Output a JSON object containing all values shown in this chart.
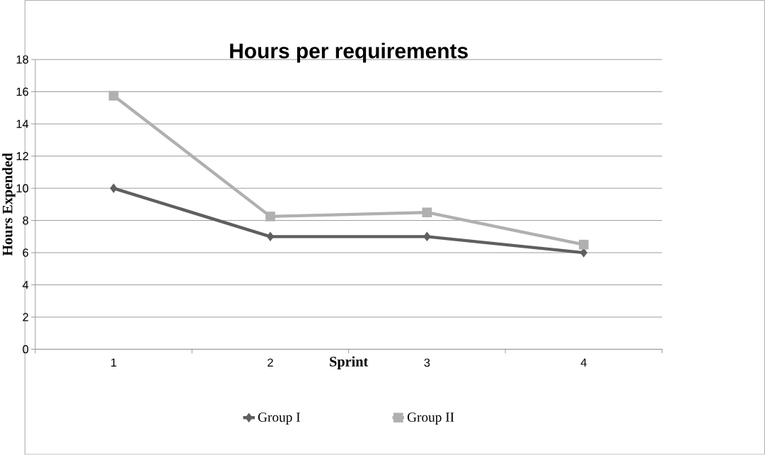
{
  "chart_data": {
    "type": "line",
    "title": "Hours per requirements",
    "xlabel": "Sprint",
    "ylabel": "Hours Expended",
    "categories": [
      "1",
      "2",
      "3",
      "4"
    ],
    "series": [
      {
        "name": "Group I",
        "color": "#5f5f5f",
        "marker": "diamond",
        "values": [
          10,
          7,
          7,
          6
        ]
      },
      {
        "name": "Group II",
        "color": "#b0b0b0",
        "marker": "square",
        "values": [
          15.75,
          8.25,
          8.5,
          6.5
        ]
      }
    ],
    "ylim": [
      0,
      18
    ],
    "yticks": [
      0,
      2,
      4,
      6,
      8,
      10,
      12,
      14,
      16,
      18
    ],
    "grid": "y",
    "legend": "bottom"
  }
}
